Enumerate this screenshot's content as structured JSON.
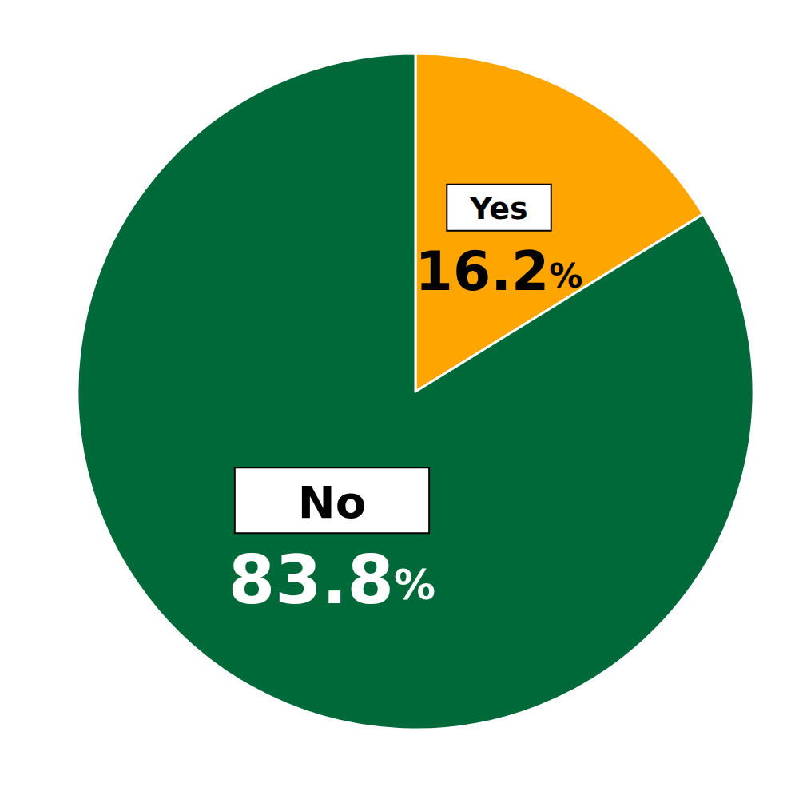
{
  "chart_data": {
    "type": "pie",
    "categories": [
      "Yes",
      "No"
    ],
    "values": [
      16.2,
      83.8
    ],
    "value_labels": [
      "16.2%",
      "83.8%"
    ],
    "colors": [
      "#FFA500",
      "#00693A"
    ],
    "data_labels": true
  }
}
